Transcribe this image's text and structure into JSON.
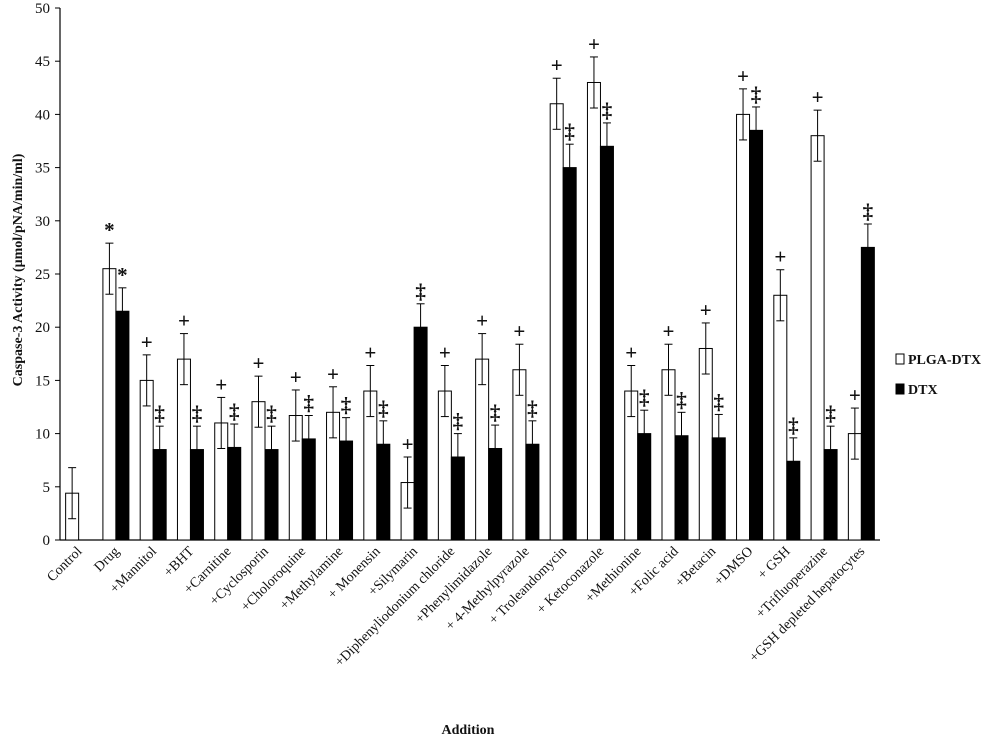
{
  "chart_data": {
    "type": "bar",
    "xlabel": "Addition",
    "ylabel": "Caspase-3 Activity (μmol/pNA/min/ml)",
    "ylim": [
      0,
      50
    ],
    "yticks": [
      0,
      5,
      10,
      15,
      20,
      25,
      30,
      35,
      40,
      45,
      50
    ],
    "legend_position": "right",
    "grid": false,
    "categories": [
      "Control",
      "Drug",
      "+Mannitol",
      "+BHT",
      "+Carnitine",
      "+Cyclosporin",
      "+Choloroquine",
      "+Methylamine",
      "+ Monensin",
      "+Silymarin",
      "+Diphenyliodonium chloride",
      "+Phenylimidazole",
      "+ 4-Methylpyrazole",
      "+ Troleandomycin",
      "+ Ketoconazole",
      "+Methionine",
      "+Folic acid",
      "+Betacin",
      "+DMSO",
      "+ GSH",
      "+Trifluoperazine",
      "+GSH depleted hepatocytes"
    ],
    "series": [
      {
        "name": "PLGA-DTX",
        "color": "#ffffff",
        "values": [
          4.4,
          25.5,
          15,
          17,
          11,
          13,
          11.7,
          12,
          14,
          5.4,
          14,
          17,
          16,
          41,
          43,
          14,
          16,
          18,
          40,
          23,
          38,
          10
        ],
        "errors": [
          2.4,
          2.4,
          2.4,
          2.4,
          2.4,
          2.4,
          2.4,
          2.4,
          2.4,
          2.4,
          2.4,
          2.4,
          2.4,
          2.4,
          2.4,
          2.4,
          2.4,
          2.4,
          2.4,
          2.4,
          2.4,
          2.4
        ],
        "markers": [
          "",
          "*",
          "+",
          "+",
          "+",
          "+",
          "+",
          "+",
          "+",
          "+",
          "+",
          "+",
          "+",
          "+",
          "+",
          "+",
          "+",
          "+",
          "+",
          "+",
          "+",
          "+"
        ]
      },
      {
        "name": "DTX",
        "color": "#000000",
        "values": [
          null,
          21.5,
          8.5,
          8.5,
          8.7,
          8.5,
          9.5,
          9.3,
          9,
          20,
          7.8,
          8.6,
          9,
          35,
          37,
          10,
          9.8,
          9.6,
          38.5,
          7.4,
          8.5,
          27.5
        ],
        "errors": [
          null,
          2.2,
          2.2,
          2.2,
          2.2,
          2.2,
          2.2,
          2.2,
          2.2,
          2.2,
          2.2,
          2.2,
          2.2,
          2.2,
          2.2,
          2.2,
          2.2,
          2.2,
          2.2,
          2.2,
          2.2,
          2.2
        ],
        "markers": [
          "",
          "*",
          "‡",
          "‡",
          "‡",
          "‡",
          "‡",
          "‡",
          "‡",
          "‡",
          "‡",
          "‡",
          "‡",
          "‡",
          "‡",
          "‡",
          "‡",
          "‡",
          "‡",
          "‡",
          "‡",
          "‡"
        ]
      }
    ]
  }
}
